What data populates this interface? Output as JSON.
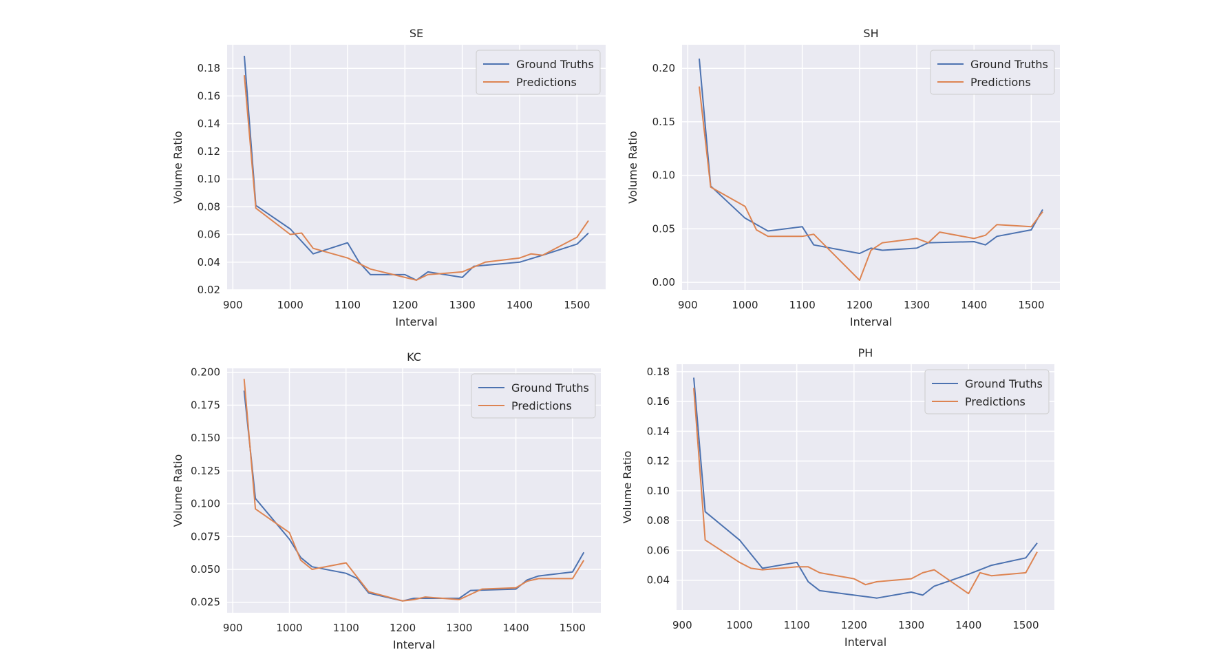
{
  "chart_data": [
    {
      "type": "line",
      "title": "SE",
      "xlabel": "Interval",
      "ylabel": "Volume Ratio",
      "xlim": [
        890,
        1550
      ],
      "ylim": [
        0.02,
        0.197
      ],
      "xticks": [
        "900",
        "1000",
        "1100",
        "1200",
        "1300",
        "1400",
        "1500"
      ],
      "yticks": [
        "0.02",
        "0.04",
        "0.06",
        "0.08",
        "0.10",
        "0.12",
        "0.14",
        "0.16",
        "0.18"
      ],
      "legend_position": "top-right",
      "grid": true,
      "series": [
        {
          "name": "Ground Truths",
          "color": "#4c72b0",
          "x": [
            920,
            940,
            1000,
            1040,
            1100,
            1120,
            1140,
            1200,
            1220,
            1240,
            1300,
            1320,
            1400,
            1440,
            1500,
            1520
          ],
          "y": [
            0.189,
            0.081,
            0.064,
            0.046,
            0.054,
            0.04,
            0.031,
            0.031,
            0.027,
            0.033,
            0.029,
            0.037,
            0.04,
            0.045,
            0.053,
            0.061
          ]
        },
        {
          "name": "Predictions",
          "color": "#dd8452",
          "x": [
            920,
            940,
            1000,
            1020,
            1040,
            1100,
            1140,
            1200,
            1220,
            1240,
            1300,
            1340,
            1400,
            1420,
            1440,
            1500,
            1520
          ],
          "y": [
            0.175,
            0.079,
            0.06,
            0.061,
            0.05,
            0.043,
            0.035,
            0.029,
            0.027,
            0.031,
            0.033,
            0.04,
            0.043,
            0.046,
            0.045,
            0.058,
            0.07
          ]
        }
      ]
    },
    {
      "type": "line",
      "title": "SH",
      "xlabel": "Interval",
      "ylabel": "Volume Ratio",
      "xlim": [
        890,
        1550
      ],
      "ylim": [
        -0.007,
        0.222
      ],
      "xticks": [
        "900",
        "1000",
        "1100",
        "1200",
        "1300",
        "1400",
        "1500"
      ],
      "yticks": [
        "0.00",
        "0.05",
        "0.10",
        "0.15",
        "0.20"
      ],
      "legend_position": "top-right",
      "grid": true,
      "series": [
        {
          "name": "Ground Truths",
          "color": "#4c72b0",
          "x": [
            920,
            940,
            1000,
            1040,
            1100,
            1120,
            1200,
            1220,
            1240,
            1300,
            1320,
            1400,
            1420,
            1440,
            1500,
            1520
          ],
          "y": [
            0.209,
            0.09,
            0.06,
            0.048,
            0.052,
            0.035,
            0.027,
            0.032,
            0.03,
            0.032,
            0.037,
            0.038,
            0.035,
            0.043,
            0.049,
            0.068
          ]
        },
        {
          "name": "Predictions",
          "color": "#dd8452",
          "x": [
            920,
            940,
            1000,
            1020,
            1040,
            1100,
            1120,
            1200,
            1220,
            1240,
            1300,
            1320,
            1340,
            1400,
            1420,
            1440,
            1500,
            1520
          ],
          "y": [
            0.183,
            0.089,
            0.071,
            0.049,
            0.043,
            0.043,
            0.045,
            0.002,
            0.03,
            0.037,
            0.041,
            0.037,
            0.047,
            0.041,
            0.044,
            0.054,
            0.052,
            0.066
          ]
        }
      ]
    },
    {
      "type": "line",
      "title": "KC",
      "xlabel": "Interval",
      "ylabel": "Volume Ratio",
      "xlim": [
        890,
        1550
      ],
      "ylim": [
        0.017,
        0.203
      ],
      "xticks": [
        "900",
        "1000",
        "1100",
        "1200",
        "1300",
        "1400",
        "1500"
      ],
      "yticks": [
        "0.025",
        "0.050",
        "0.075",
        "0.100",
        "0.125",
        "0.150",
        "0.175",
        "0.200"
      ],
      "legend_position": "top-right",
      "grid": true,
      "series": [
        {
          "name": "Ground Truths",
          "color": "#4c72b0",
          "x": [
            920,
            940,
            1000,
            1020,
            1040,
            1100,
            1120,
            1140,
            1200,
            1220,
            1240,
            1300,
            1320,
            1400,
            1420,
            1440,
            1500,
            1520
          ],
          "y": [
            0.186,
            0.104,
            0.073,
            0.059,
            0.052,
            0.047,
            0.043,
            0.032,
            0.026,
            0.028,
            0.028,
            0.028,
            0.034,
            0.035,
            0.042,
            0.045,
            0.048,
            0.063
          ]
        },
        {
          "name": "Predictions",
          "color": "#dd8452",
          "x": [
            920,
            940,
            1000,
            1020,
            1040,
            1100,
            1120,
            1140,
            1200,
            1220,
            1240,
            1300,
            1340,
            1400,
            1420,
            1440,
            1500,
            1520
          ],
          "y": [
            0.195,
            0.096,
            0.078,
            0.057,
            0.05,
            0.055,
            0.044,
            0.033,
            0.026,
            0.027,
            0.029,
            0.027,
            0.035,
            0.036,
            0.041,
            0.043,
            0.043,
            0.057
          ]
        }
      ]
    },
    {
      "type": "line",
      "title": "PH",
      "xlabel": "Interval",
      "ylabel": "Volume Ratio",
      "xlim": [
        890,
        1550
      ],
      "ylim": [
        0.02,
        0.185
      ],
      "xticks": [
        "900",
        "1000",
        "1100",
        "1200",
        "1300",
        "1400",
        "1500"
      ],
      "yticks": [
        "0.04",
        "0.06",
        "0.08",
        "0.10",
        "0.12",
        "0.14",
        "0.16",
        "0.18"
      ],
      "legend_position": "top-right",
      "grid": true,
      "series": [
        {
          "name": "Ground Truths",
          "color": "#4c72b0",
          "x": [
            920,
            940,
            1000,
            1040,
            1100,
            1120,
            1140,
            1200,
            1240,
            1300,
            1320,
            1340,
            1400,
            1440,
            1500,
            1520
          ],
          "y": [
            0.176,
            0.086,
            0.067,
            0.048,
            0.052,
            0.039,
            0.033,
            0.03,
            0.028,
            0.032,
            0.03,
            0.036,
            0.044,
            0.05,
            0.055,
            0.065
          ]
        },
        {
          "name": "Predictions",
          "color": "#dd8452",
          "x": [
            920,
            940,
            1000,
            1020,
            1040,
            1100,
            1120,
            1140,
            1200,
            1220,
            1240,
            1300,
            1320,
            1340,
            1400,
            1420,
            1440,
            1500,
            1520
          ],
          "y": [
            0.169,
            0.067,
            0.052,
            0.048,
            0.047,
            0.049,
            0.049,
            0.045,
            0.041,
            0.037,
            0.039,
            0.041,
            0.045,
            0.047,
            0.031,
            0.045,
            0.043,
            0.045,
            0.059
          ]
        }
      ]
    }
  ]
}
